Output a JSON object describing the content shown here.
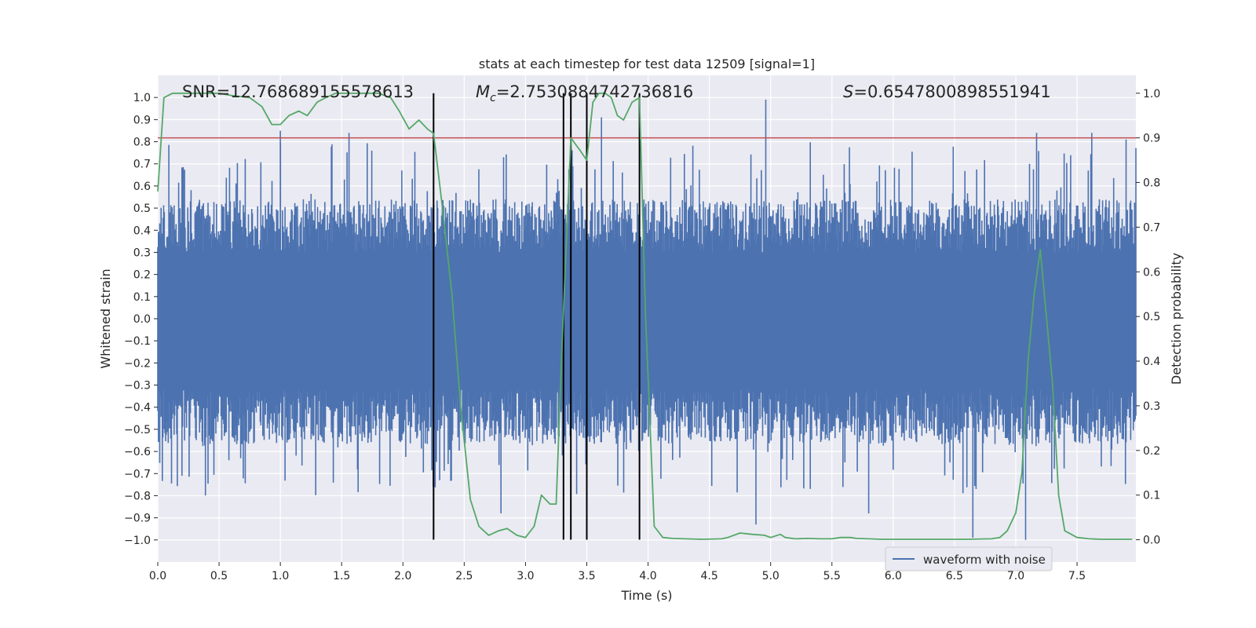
{
  "chart_data": {
    "type": "line",
    "title": "stats at each timestep for test data 12509 [signal=1]",
    "xlabel": "Time (s)",
    "ylabel": "Whitened strain",
    "ylabel_right": "Detection probability",
    "xlim": [
      0.0,
      7.98
    ],
    "ylim": [
      -1.1,
      1.1
    ],
    "ylim_right": [
      -0.05,
      1.04
    ],
    "x_ticks": [
      0.0,
      0.5,
      1.0,
      1.5,
      2.0,
      2.5,
      3.0,
      3.5,
      4.0,
      4.5,
      5.0,
      5.5,
      6.0,
      6.5,
      7.0,
      7.5
    ],
    "x_tick_labels": [
      "0.0",
      "0.5",
      "1.0",
      "1.5",
      "2.0",
      "2.5",
      "3.0",
      "3.5",
      "4.0",
      "4.5",
      "5.0",
      "5.5",
      "6.0",
      "6.5",
      "7.0",
      "7.5"
    ],
    "y_ticks": [
      -1.0,
      -0.9,
      -0.8,
      -0.7,
      -0.6,
      -0.5,
      -0.4,
      -0.3,
      -0.2,
      -0.1,
      0.0,
      0.1,
      0.2,
      0.3,
      0.4,
      0.5,
      0.6,
      0.7,
      0.8,
      0.9,
      1.0
    ],
    "y_tick_labels": [
      "−1.0",
      "−0.9",
      "−0.8",
      "−0.7",
      "−0.6",
      "−0.5",
      "−0.4",
      "−0.3",
      "−0.2",
      "−0.1",
      "0.0",
      "0.1",
      "0.2",
      "0.3",
      "0.4",
      "0.5",
      "0.6",
      "0.7",
      "0.8",
      "0.9",
      "1.0"
    ],
    "y_right_ticks": [
      0.0,
      0.1,
      0.2,
      0.3,
      0.4,
      0.5,
      0.6,
      0.7,
      0.8,
      0.9,
      1.0
    ],
    "y_right_tick_labels": [
      "0.0",
      "0.1",
      "0.2",
      "0.3",
      "0.4",
      "0.5",
      "0.6",
      "0.7",
      "0.8",
      "0.9",
      "1.0"
    ],
    "annotations": {
      "snr": "SNR=12.768689155578613",
      "mc_symbol": "M",
      "mc_subscript": "c",
      "mc_value": "=2.7530884742736816",
      "s_symbol": "S",
      "s_value": "=0.6547800898551941"
    },
    "threshold_right": 0.9,
    "vertical_lines_x": [
      2.25,
      3.31,
      3.37,
      3.5,
      3.93
    ],
    "waveform": {
      "name": "waveform with noise",
      "sample_count": 1500,
      "typical_envelope": [
        -0.42,
        0.4
      ],
      "peaks": [
        {
          "x": 1.0,
          "y": 0.85
        },
        {
          "x": 1.56,
          "y": 0.84
        },
        {
          "x": 2.25,
          "y": -0.97
        },
        {
          "x": 2.3,
          "y": -0.73
        },
        {
          "x": 2.8,
          "y": -0.88
        },
        {
          "x": 3.62,
          "y": 0.91
        },
        {
          "x": 4.88,
          "y": -0.93
        },
        {
          "x": 4.96,
          "y": 0.99
        },
        {
          "x": 5.8,
          "y": -0.88
        },
        {
          "x": 6.65,
          "y": -0.99
        },
        {
          "x": 7.08,
          "y": -1.0
        },
        {
          "x": 7.17,
          "y": 0.84
        },
        {
          "x": 7.62,
          "y": 0.84
        },
        {
          "x": 7.9,
          "y": 0.81
        }
      ]
    },
    "probability": {
      "name": "Detection probability",
      "x": [
        0.0,
        0.05,
        0.12,
        0.2,
        0.3,
        0.4,
        0.5,
        0.6,
        0.75,
        0.85,
        0.93,
        1.0,
        1.07,
        1.15,
        1.22,
        1.3,
        1.37,
        1.45,
        1.52,
        1.6,
        1.7,
        1.8,
        1.9,
        1.97,
        2.05,
        2.13,
        2.2,
        2.25,
        2.32,
        2.4,
        2.47,
        2.55,
        2.62,
        2.7,
        2.78,
        2.85,
        2.93,
        3.0,
        3.07,
        3.13,
        3.2,
        3.25,
        3.3,
        3.37,
        3.45,
        3.5,
        3.55,
        3.6,
        3.65,
        3.7,
        3.75,
        3.8,
        3.87,
        3.93,
        3.98,
        4.05,
        4.12,
        4.2,
        4.3,
        4.45,
        4.6,
        4.65,
        4.75,
        4.85,
        4.95,
        5.0,
        5.08,
        5.12,
        5.2,
        5.3,
        5.4,
        5.5,
        5.57,
        5.65,
        5.7,
        5.8,
        5.9,
        6.0,
        6.2,
        6.4,
        6.6,
        6.8,
        6.87,
        6.93,
        7.0,
        7.05,
        7.1,
        7.15,
        7.2,
        7.25,
        7.3,
        7.35,
        7.4,
        7.5,
        7.6,
        7.7,
        7.8,
        7.95
      ],
      "y": [
        0.78,
        0.99,
        1.0,
        1.0,
        1.0,
        1.0,
        1.0,
        0.995,
        0.99,
        0.97,
        0.93,
        0.93,
        0.95,
        0.96,
        0.95,
        0.98,
        0.99,
        1.0,
        1.0,
        1.0,
        1.0,
        1.0,
        0.99,
        0.96,
        0.92,
        0.94,
        0.92,
        0.91,
        0.75,
        0.55,
        0.3,
        0.09,
        0.03,
        0.01,
        0.02,
        0.025,
        0.01,
        0.005,
        0.03,
        0.1,
        0.08,
        0.08,
        0.45,
        0.9,
        0.87,
        0.85,
        0.98,
        1.0,
        1.0,
        0.99,
        0.95,
        0.94,
        0.98,
        0.99,
        0.5,
        0.03,
        0.005,
        0.003,
        0.002,
        0.001,
        0.002,
        0.005,
        0.015,
        0.012,
        0.01,
        0.005,
        0.012,
        0.005,
        0.002,
        0.003,
        0.002,
        0.002,
        0.005,
        0.005,
        0.003,
        0.002,
        0.001,
        0.001,
        0.001,
        0.001,
        0.001,
        0.002,
        0.005,
        0.02,
        0.06,
        0.15,
        0.4,
        0.55,
        0.65,
        0.5,
        0.35,
        0.1,
        0.02,
        0.005,
        0.002,
        0.001,
        0.001,
        0.001
      ]
    },
    "legend": {
      "position": "lower-right",
      "entries": [
        "waveform with noise"
      ]
    },
    "colors": {
      "waveform": "#4c72b0",
      "probability": "#55a868",
      "threshold": "#c44e52",
      "vlines": "#000000",
      "plot_bg": "#eaeaf2",
      "grid": "#ffffff"
    }
  }
}
